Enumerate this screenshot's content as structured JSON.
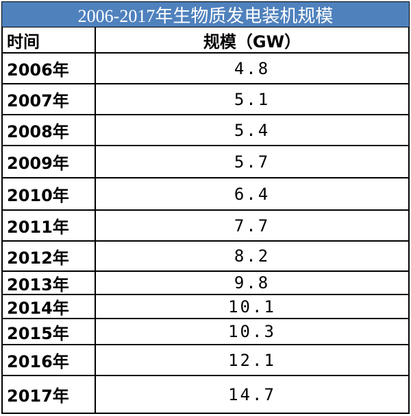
{
  "table": {
    "title": "2006-2017年生物质发电装机规模",
    "header": [
      "时间",
      "规模（GW）"
    ],
    "rows": [
      [
        "2006年",
        4.8
      ],
      [
        "2007年",
        5.1
      ],
      [
        "2008年",
        5.4
      ],
      [
        "2009年",
        5.7
      ],
      [
        "2010年",
        6.4
      ],
      [
        "2011年",
        7.7
      ],
      [
        "2012年",
        8.2
      ],
      [
        "2013年",
        9.8
      ],
      [
        "2014年",
        10.1
      ],
      [
        "2015年",
        10.3
      ],
      [
        "2016年",
        12.1
      ],
      [
        "2017年",
        14.7
      ]
    ]
  }
}
